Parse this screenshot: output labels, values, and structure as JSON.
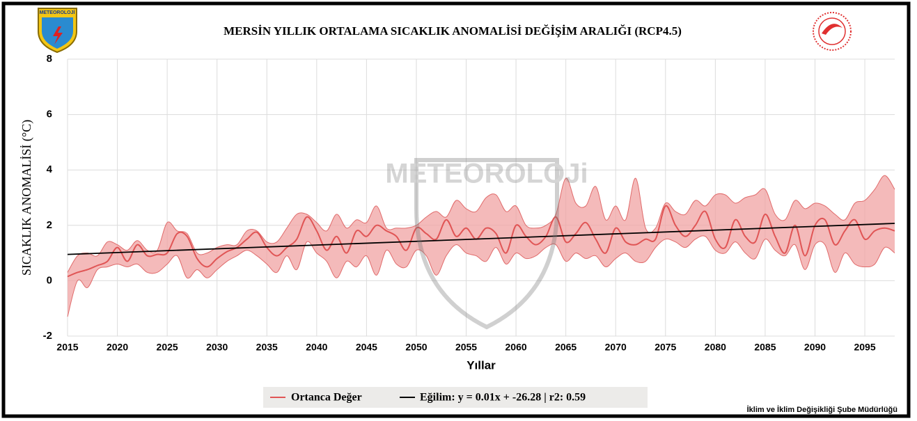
{
  "chart_data": {
    "type": "band-line",
    "title": "MERSİN YILLIK ORTALAMA SICAKLIK ANOMALİSİ DEĞİŞİM ARALIĞI (RCP4.5)",
    "y_label": "SICAKLIK ANOMALİSİ (°C)",
    "x_label": "Yıllar",
    "logo_text": "METEOROLOJİ",
    "watermark": "METEOROLOJi",
    "footer": "İklim ve İklim Değişikliği Şube Müdürlüğü",
    "xlim": [
      2015,
      2098
    ],
    "xticks": [
      2015,
      2020,
      2025,
      2030,
      2035,
      2040,
      2045,
      2050,
      2055,
      2060,
      2065,
      2070,
      2075,
      2080,
      2085,
      2090,
      2095
    ],
    "ylim": [
      -2,
      8
    ],
    "yticks": [
      -2,
      0,
      2,
      4,
      6,
      8
    ],
    "grid": true,
    "x": [
      2015,
      2016,
      2017,
      2018,
      2019,
      2020,
      2021,
      2022,
      2023,
      2024,
      2025,
      2026,
      2027,
      2028,
      2029,
      2030,
      2031,
      2032,
      2033,
      2034,
      2035,
      2036,
      2037,
      2038,
      2039,
      2040,
      2041,
      2042,
      2043,
      2044,
      2045,
      2046,
      2047,
      2048,
      2049,
      2050,
      2051,
      2052,
      2053,
      2054,
      2055,
      2056,
      2057,
      2058,
      2059,
      2060,
      2061,
      2062,
      2063,
      2064,
      2065,
      2066,
      2067,
      2068,
      2069,
      2070,
      2071,
      2072,
      2073,
      2074,
      2075,
      2076,
      2077,
      2078,
      2079,
      2080,
      2081,
      2082,
      2083,
      2084,
      2085,
      2086,
      2087,
      2088,
      2089,
      2090,
      2091,
      2092,
      2093,
      2094,
      2095,
      2096,
      2097,
      2098
    ],
    "band": {
      "color": "#f0a3a3",
      "lower": [
        -1.3,
        0.0,
        -0.25,
        0.4,
        0.5,
        0.6,
        0.5,
        0.6,
        0.3,
        0.3,
        0.6,
        0.9,
        0.1,
        0.4,
        0.1,
        0.4,
        0.7,
        0.9,
        1.1,
        0.9,
        0.6,
        0.3,
        0.9,
        0.4,
        1.4,
        1.0,
        0.7,
        0.1,
        0.7,
        0.5,
        0.9,
        0.2,
        1.1,
        0.6,
        0.5,
        1.1,
        0.9,
        0.2,
        0.9,
        1.3,
        1.0,
        0.9,
        0.7,
        1.2,
        0.6,
        1.0,
        0.8,
        0.9,
        1.2,
        1.3,
        0.7,
        1.0,
        0.8,
        0.9,
        0.5,
        0.8,
        1.0,
        0.7,
        0.7,
        1.2,
        1.5,
        1.4,
        1.2,
        1.5,
        1.6,
        1.1,
        1.0,
        1.4,
        1.0,
        0.8,
        1.5,
        1.1,
        0.9,
        1.3,
        0.4,
        1.3,
        1.3,
        0.3,
        1.0,
        0.6,
        0.5,
        0.6,
        1.2,
        1.0
      ],
      "upper": [
        0.3,
        0.9,
        1.0,
        0.9,
        1.4,
        1.3,
        1.1,
        1.45,
        1.1,
        1.1,
        2.1,
        1.8,
        1.7,
        1.0,
        1.0,
        1.2,
        1.3,
        1.3,
        1.8,
        1.8,
        1.4,
        1.4,
        1.9,
        2.4,
        2.4,
        2.1,
        1.8,
        2.4,
        1.9,
        2.2,
        2.1,
        2.7,
        1.9,
        1.9,
        1.9,
        2.0,
        2.3,
        2.5,
        2.3,
        2.9,
        2.6,
        2.5,
        3.0,
        3.1,
        2.5,
        2.7,
        2.0,
        1.9,
        2.0,
        2.4,
        3.7,
        2.8,
        2.7,
        3.4,
        2.2,
        2.7,
        2.2,
        3.7,
        1.9,
        1.9,
        2.8,
        2.5,
        2.4,
        2.9,
        2.7,
        3.1,
        3.1,
        2.8,
        3.0,
        3.1,
        3.3,
        2.4,
        2.2,
        2.9,
        2.6,
        2.8,
        2.7,
        2.4,
        2.2,
        2.8,
        2.9,
        3.3,
        3.8,
        3.3
      ]
    },
    "series": [
      {
        "name": "Ortanca Değer",
        "color": "#e05555",
        "values": [
          0.15,
          0.3,
          0.4,
          0.55,
          0.7,
          1.2,
          0.7,
          1.3,
          0.9,
          0.95,
          1.0,
          1.7,
          1.6,
          0.8,
          0.5,
          0.8,
          1.05,
          1.2,
          1.5,
          1.75,
          1.2,
          0.9,
          1.2,
          1.5,
          2.3,
          1.8,
          1.1,
          1.6,
          1.0,
          1.8,
          1.6,
          2.0,
          1.8,
          1.6,
          1.1,
          1.9,
          1.7,
          1.5,
          2.2,
          1.6,
          1.9,
          1.5,
          1.9,
          1.7,
          1.0,
          2.0,
          1.6,
          1.3,
          1.6,
          2.3,
          1.4,
          1.7,
          2.1,
          1.5,
          1.0,
          1.9,
          1.4,
          1.3,
          1.5,
          1.5,
          2.7,
          2.0,
          1.6,
          2.0,
          2.5,
          1.5,
          1.2,
          2.2,
          1.6,
          1.4,
          2.4,
          1.6,
          1.0,
          2.0,
          0.9,
          2.0,
          2.2,
          1.3,
          1.8,
          2.2,
          1.5,
          1.8,
          1.9,
          1.8
        ]
      }
    ],
    "trend": {
      "name": "Eğilim: y = 0.01x + -26.28 | r2: 0.59",
      "color": "#000000",
      "x": [
        2015,
        2098
      ],
      "values": [
        0.95,
        2.07
      ]
    }
  }
}
